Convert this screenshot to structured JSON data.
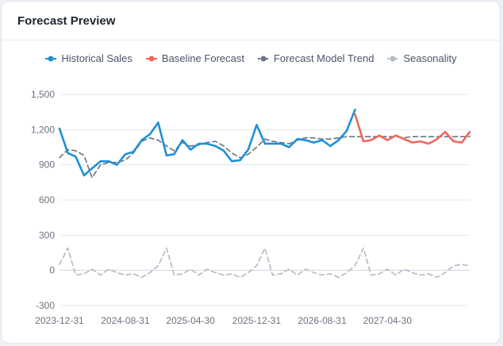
{
  "card": {
    "title": "Forecast Preview"
  },
  "chart_data": {
    "type": "line",
    "xlabel": "",
    "ylabel": "",
    "ylim": [
      -300,
      1500
    ],
    "y_ticks": [
      "1,500",
      "1,200",
      "900",
      "600",
      "300",
      "0",
      "-300"
    ],
    "y_tick_values": [
      1500,
      1200,
      900,
      600,
      300,
      0,
      -300
    ],
    "x_tick_labels": [
      "2023-12-31",
      "2024-08-31",
      "2025-04-30",
      "2025-12-31",
      "2026-08-31",
      "2027-04-30"
    ],
    "x_tick_months": [
      0,
      8,
      16,
      24,
      32,
      40
    ],
    "x_start": "2023-12-31",
    "x_end": "2028-02-29",
    "grid": true,
    "legend_position": "top-center",
    "series": [
      {
        "name": "Historical Sales",
        "color": "#1e90d6",
        "style": "solid",
        "marker": "circle",
        "x": [
          "2023-12-31",
          "2024-01-31",
          "2024-02-29",
          "2024-03-31",
          "2024-04-30",
          "2024-05-31",
          "2024-06-30",
          "2024-07-31",
          "2024-08-31",
          "2024-09-30",
          "2024-10-31",
          "2024-11-30",
          "2024-12-31",
          "2025-01-31",
          "2025-02-28",
          "2025-03-31",
          "2025-04-30",
          "2025-05-31",
          "2025-06-30",
          "2025-07-31",
          "2025-08-31",
          "2025-09-30",
          "2025-10-31",
          "2025-11-30",
          "2025-12-31",
          "2026-01-31",
          "2026-02-28",
          "2026-03-31",
          "2026-04-30",
          "2026-05-31",
          "2026-06-30",
          "2026-07-31",
          "2026-08-31",
          "2026-09-30",
          "2026-10-31",
          "2026-11-30",
          "2026-12-31"
        ],
        "values": [
          1210,
          1000,
          970,
          810,
          870,
          930,
          930,
          900,
          990,
          1010,
          1110,
          1160,
          1260,
          980,
          990,
          1110,
          1030,
          1080,
          1080,
          1060,
          1020,
          930,
          940,
          1030,
          1240,
          1080,
          1080,
          1080,
          1050,
          1120,
          1110,
          1090,
          1110,
          1060,
          1110,
          1190,
          1370
        ]
      },
      {
        "name": "Baseline Forecast",
        "color": "#f0675a",
        "style": "solid",
        "marker": "circle",
        "x": [
          "2026-12-31",
          "2027-01-31",
          "2027-02-28",
          "2027-03-31",
          "2027-04-30",
          "2027-05-31",
          "2027-06-30",
          "2027-07-31",
          "2027-08-31",
          "2027-09-30",
          "2027-10-31",
          "2027-11-30",
          "2027-12-31",
          "2028-01-31",
          "2028-02-29"
        ],
        "values": [
          1330,
          1100,
          1110,
          1150,
          1110,
          1150,
          1120,
          1090,
          1100,
          1080,
          1120,
          1180,
          1100,
          1090,
          1180
        ]
      },
      {
        "name": "Forecast Model Trend",
        "color": "#6b7484",
        "style": "dashed",
        "marker": "circle",
        "x": [
          "2023-12-31",
          "2024-01-31",
          "2024-02-29",
          "2024-03-31",
          "2024-04-30",
          "2024-05-31",
          "2024-06-30",
          "2024-07-31",
          "2024-08-31",
          "2024-09-30",
          "2024-10-31",
          "2024-11-30",
          "2024-12-31",
          "2025-01-31",
          "2025-02-28",
          "2025-03-31",
          "2025-04-30",
          "2025-05-31",
          "2025-06-30",
          "2025-07-31",
          "2025-08-31",
          "2025-09-30",
          "2025-10-31",
          "2025-11-30",
          "2025-12-31",
          "2026-01-31",
          "2026-02-28",
          "2026-03-31",
          "2026-04-30",
          "2026-05-31",
          "2026-06-30",
          "2026-07-31",
          "2026-08-31",
          "2026-09-30",
          "2026-10-31",
          "2026-11-30",
          "2026-12-31",
          "2027-01-31",
          "2027-02-28",
          "2027-03-31",
          "2027-04-30",
          "2027-05-31",
          "2027-06-30",
          "2027-07-31",
          "2027-08-31",
          "2027-09-30",
          "2027-10-31",
          "2027-11-30",
          "2027-12-31",
          "2028-01-31",
          "2028-02-29"
        ],
        "values": [
          960,
          1030,
          1020,
          980,
          790,
          900,
          920,
          920,
          940,
          1000,
          1100,
          1130,
          1110,
          1060,
          1020,
          1090,
          1060,
          1070,
          1090,
          1100,
          1060,
          1000,
          960,
          990,
          1050,
          1120,
          1100,
          1090,
          1080,
          1110,
          1130,
          1130,
          1120,
          1120,
          1130,
          1140,
          1140,
          1140,
          1140,
          1140,
          1140,
          1140,
          1130,
          1140,
          1140,
          1140,
          1140,
          1140,
          1140,
          1140,
          1140
        ]
      },
      {
        "name": "Seasonality",
        "color": "#b3bac6",
        "style": "dashed",
        "marker": "circle",
        "x": [
          "2023-12-31",
          "2024-01-31",
          "2024-02-29",
          "2024-03-31",
          "2024-04-30",
          "2024-05-31",
          "2024-06-30",
          "2024-07-31",
          "2024-08-31",
          "2024-09-30",
          "2024-10-31",
          "2024-11-30",
          "2024-12-31",
          "2025-01-31",
          "2025-02-28",
          "2025-03-31",
          "2025-04-30",
          "2025-05-31",
          "2025-06-30",
          "2025-07-31",
          "2025-08-31",
          "2025-09-30",
          "2025-10-31",
          "2025-11-30",
          "2025-12-31",
          "2026-01-31",
          "2026-02-28",
          "2026-03-31",
          "2026-04-30",
          "2026-05-31",
          "2026-06-30",
          "2026-07-31",
          "2026-08-31",
          "2026-09-30",
          "2026-10-31",
          "2026-11-30",
          "2026-12-31",
          "2027-01-31",
          "2027-02-28",
          "2027-03-31",
          "2027-04-30",
          "2027-05-31",
          "2027-06-30",
          "2027-07-31",
          "2027-08-31",
          "2027-09-30",
          "2027-10-31",
          "2027-11-30",
          "2027-12-31",
          "2028-01-31",
          "2028-02-29"
        ],
        "values": [
          50,
          190,
          -40,
          -30,
          10,
          -40,
          10,
          -20,
          -40,
          -30,
          -60,
          -20,
          40,
          190,
          -40,
          -30,
          10,
          -40,
          10,
          -20,
          -40,
          -30,
          -60,
          -20,
          40,
          190,
          -40,
          -30,
          10,
          -40,
          10,
          -20,
          -40,
          -30,
          -60,
          -20,
          40,
          190,
          -40,
          -30,
          10,
          -40,
          10,
          -20,
          -40,
          -30,
          -60,
          -20,
          40,
          50,
          40
        ]
      }
    ]
  }
}
